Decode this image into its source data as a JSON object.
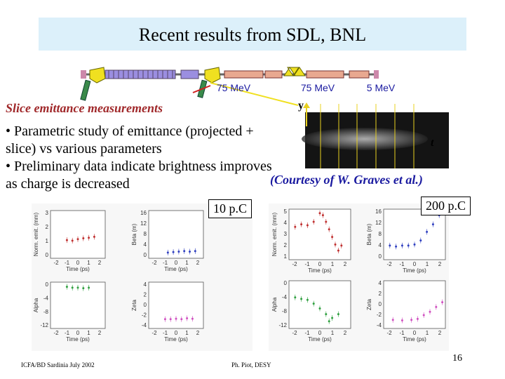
{
  "header": {
    "title": "Recent results from SDL, BNL"
  },
  "beamline": {
    "labels": [
      "75 MeV",
      "75 MeV",
      "5 MeV"
    ]
  },
  "section": {
    "heading": "Slice emittance measurements",
    "bullets": [
      "• Parametric study of emittance (projected + slice) vs various parameters",
      "• Preliminary data indicate brightness improves as charge is decreased"
    ]
  },
  "image": {
    "y_label": "y",
    "t_label": "t",
    "credit": "(Courtesy of W. Graves et al.)"
  },
  "figures": [
    {
      "label": "10 p.C",
      "plots": [
        {
          "ylabel": "Norm. emit. (mm)",
          "yticks": [
            "3",
            "2",
            "1",
            "0"
          ],
          "xlabel": "Time (ps)",
          "xticks": [
            "-2",
            "-1",
            "0",
            "1",
            "2"
          ]
        },
        {
          "ylabel": "Beta (m)",
          "yticks": [
            "16",
            "12",
            "8",
            "4",
            "0"
          ],
          "xlabel": "Time (ps)",
          "xticks": [
            "-2",
            "-1",
            "0",
            "1",
            "2"
          ]
        },
        {
          "ylabel": "Alpha",
          "yticks": [
            "0",
            "-4",
            "-8",
            "-12"
          ],
          "xlabel": "Time (ps)",
          "xticks": [
            "-2",
            "-1",
            "0",
            "1",
            "2"
          ]
        },
        {
          "ylabel": "Zeta",
          "yticks": [
            "4",
            "2",
            "0",
            "-2",
            "-4"
          ],
          "xlabel": "Time (ps)",
          "xticks": [
            "-2",
            "-1",
            "0",
            "1",
            "2"
          ]
        }
      ]
    },
    {
      "label": "200 p.C",
      "plots": [
        {
          "ylabel": "Norm. emit. (mm)",
          "yticks": [
            "5",
            "4",
            "3",
            "2",
            "1"
          ],
          "xlabel": "Time (ps)",
          "xticks": [
            "-2",
            "-1",
            "0",
            "1",
            "2"
          ]
        },
        {
          "ylabel": "Beta (m)",
          "yticks": [
            "16",
            "12",
            "8",
            "4",
            "0"
          ],
          "xlabel": "Time (ps)",
          "xticks": [
            "-2",
            "-1",
            "0",
            "1",
            "2"
          ]
        },
        {
          "ylabel": "Alpha",
          "yticks": [
            "0",
            "-4",
            "-8",
            "-12"
          ],
          "xlabel": "Time (ps)",
          "xticks": [
            "-2",
            "-1",
            "0",
            "1",
            "2"
          ]
        },
        {
          "ylabel": "Zeta",
          "yticks": [
            "4",
            "2",
            "0",
            "-2",
            "-4"
          ],
          "xlabel": "Time (ps)",
          "xticks": [
            "-2",
            "-1",
            "0",
            "1",
            "2"
          ]
        }
      ]
    }
  ],
  "footer": {
    "left": "ICFA/BD Sardinia July 2002",
    "center": "Ph. Piot, DESY",
    "page": "16"
  }
}
